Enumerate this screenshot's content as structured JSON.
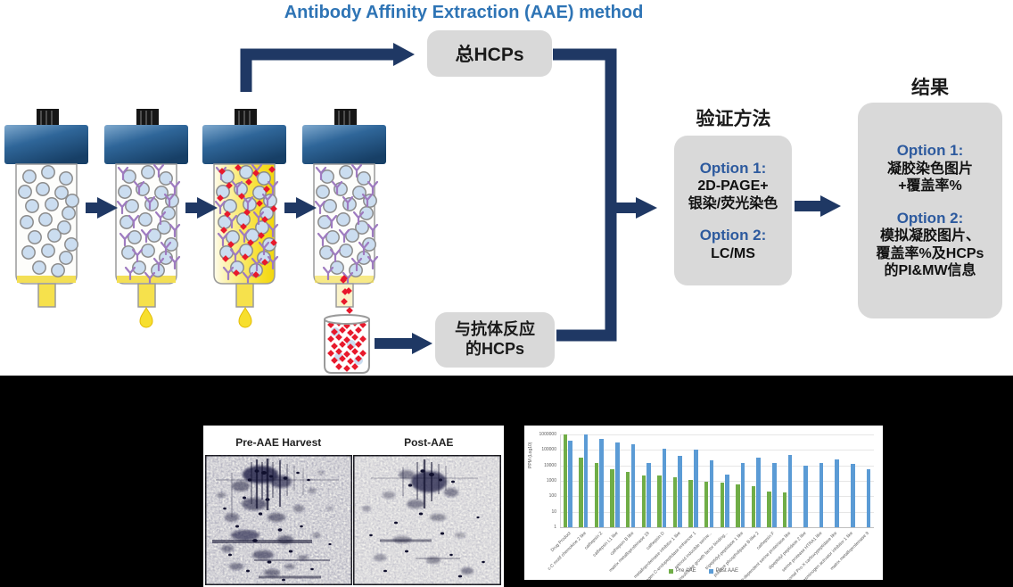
{
  "diagram": {
    "title": "Antibody Affinity Extraction (AAE) method",
    "total_hcps": "总HCPs",
    "reacted_hcps": [
      "与抗体反应",
      "的HCPs"
    ],
    "validation_heading": "验证方法",
    "validation_box": {
      "option1_title": "Option 1:",
      "option1_lines": [
        "2D-PAGE+",
        "银染/荧光染色"
      ],
      "option2_title": "Option 2:",
      "option2_lines": [
        "LC/MS"
      ]
    },
    "results_heading": "结果",
    "results_box": {
      "option1_title": "Option 1:",
      "option1_lines": [
        "凝胶染色图片",
        "+覆盖率%"
      ],
      "option2_title": "Option 2:",
      "option2_lines": [
        "模拟凝胶图片、",
        "覆盖率%及HCPs",
        "的PI&MW信息"
      ]
    }
  },
  "gel_panel": {
    "left_label": "Pre-AAE Harvest",
    "right_label": "Post-AAE"
  },
  "chart_data": {
    "type": "bar",
    "title": "",
    "xlabel": "",
    "ylabel": "PPM (Log10)",
    "yscale": "log",
    "ylim": [
      1,
      1000000
    ],
    "yticks": [
      1,
      10,
      100,
      1000,
      10000,
      100000,
      1000000
    ],
    "grid": true,
    "legend_position": "bottom",
    "categories": [
      "Drug Product",
      "c-C motif chemokine 2 like",
      "cathepsin Z",
      "cathepsin L1 like",
      "cathepsin B like",
      "matrix metalloproteinase 19",
      "cathepsin D",
      "metalloproteinase inhibitor 1 like",
      "procollagen C-endopeptidase enhancer 1",
      "retinoid inducible serine...",
      "insulin-like growth factor binding...",
      "tripeptidyl-peptidase 1 like",
      "putative phospholipase B-like 2",
      "cathepsin F",
      "calcium-dependent serine proteinase like",
      "dipeptidyl peptidase 2 like",
      "serine protease HTRA1 like",
      "lysosomal Pro-X carboxypeptidase like",
      "plasminogen activator inhibitor 1 like",
      "matrix metalloproteinase 9"
    ],
    "series": [
      {
        "name": "Pre AAE",
        "color": "#70AD47",
        "values": [
          1000000,
          30000,
          14000,
          5500,
          3800,
          2200,
          2200,
          1600,
          1150,
          900,
          750,
          620,
          480,
          200,
          190,
          0,
          0,
          0,
          0,
          0
        ]
      },
      {
        "name": "Post AAE",
        "color": "#5B9BD5",
        "values": [
          400000,
          1000000,
          550000,
          290000,
          230000,
          15000,
          120000,
          40000,
          110000,
          22000,
          2600,
          15000,
          33000,
          15000,
          48000,
          9000,
          15000,
          25000,
          13000,
          6000
        ]
      }
    ]
  },
  "colors": {
    "title_blue": "#2E74B5",
    "arrow_navy": "#1F3864",
    "box_gray": "#D9D9D9",
    "option_blue": "#2D5A9E",
    "bead_blue": "#CBDDF0",
    "antibody_purple": "#9E7BC0",
    "hcp_red": "#E8192C",
    "eluate_yellow": "#F7DF2E",
    "pre_aae_green": "#70AD47",
    "post_aae_blue": "#5B9BD5"
  },
  "icons": {
    "column": "chromatography-column-icon",
    "bead": "resin-bead-icon",
    "antibody": "antibody-y-icon",
    "hcp": "hcp-diamond-icon",
    "drop": "eluate-drop-icon",
    "beaker": "collection-beaker-icon",
    "arrow": "flow-arrow-icon"
  }
}
